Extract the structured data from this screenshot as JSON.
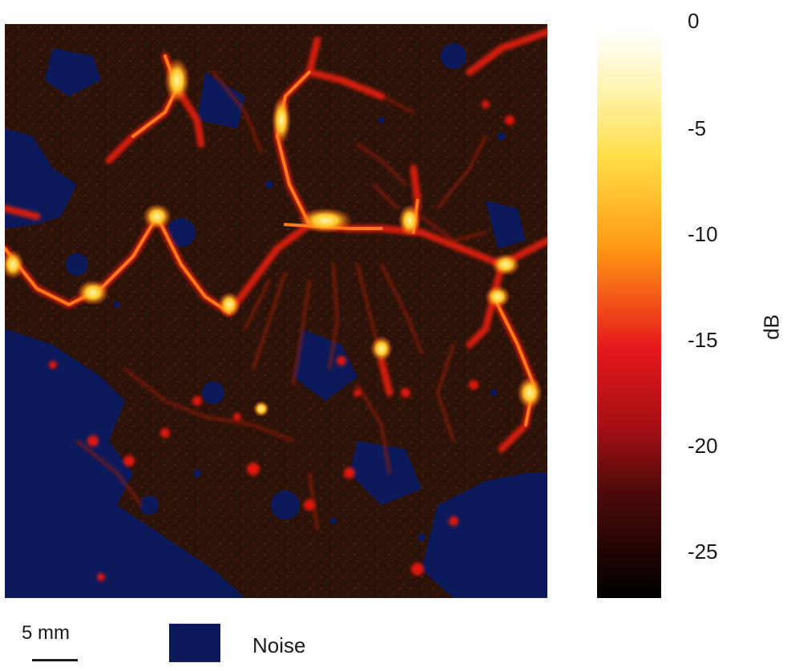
{
  "colorbar": {
    "unit": "dB",
    "ticks": [
      "0",
      "-5",
      "-10",
      "-15",
      "-20",
      "-25"
    ],
    "colors": [
      "#ffffff",
      "#ffe94a",
      "#ff9a14",
      "#e6181c",
      "#5a0a0a",
      "#000000"
    ]
  },
  "scalebar": {
    "label": "5 mm"
  },
  "legend": {
    "label": "Noise",
    "color": "#0c1a5c"
  },
  "image": {
    "background_color": "#2a1208",
    "vessel_colors": [
      "#c4160e",
      "#ff6a14",
      "#ffd23c"
    ]
  }
}
